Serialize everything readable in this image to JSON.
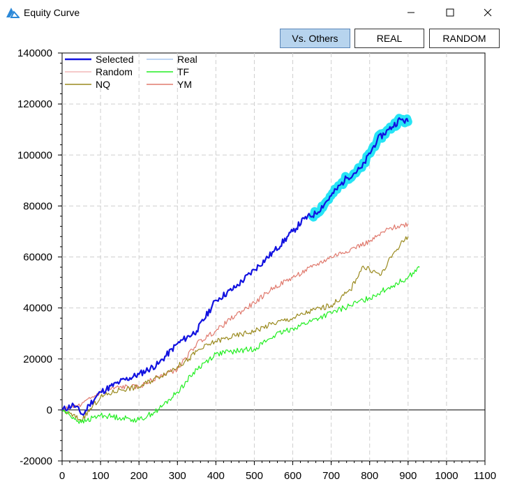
{
  "window": {
    "title": "Equity Curve"
  },
  "toolbar": {
    "vs_others": "Vs. Others",
    "real": "REAL",
    "random": "RANDOM"
  },
  "colors": {
    "selected": "#1212e0",
    "selected_glow": "#26e4f5",
    "real": "#a8c8f0",
    "random": "#f2b8b8",
    "tf": "#22ee22",
    "nq": "#9a8a1e",
    "ym": "#e07a6e",
    "active_button": "#b7d4ee"
  },
  "chart_data": {
    "type": "line",
    "xlim": [
      0,
      1100
    ],
    "ylim": [
      -20000,
      140000
    ],
    "x_ticks": [
      "0",
      "100",
      "200",
      "300",
      "400",
      "500",
      "600",
      "700",
      "800",
      "900",
      "1000",
      "1100"
    ],
    "y_ticks": [
      "-20000",
      "0",
      "20000",
      "40000",
      "60000",
      "80000",
      "100000",
      "120000",
      "140000"
    ],
    "grid": true,
    "legend_position": "top-left",
    "legend": [
      "Selected",
      "Real",
      "Random",
      "TF",
      "NQ",
      "YM"
    ],
    "series": [
      {
        "name": "Selected",
        "points": [
          [
            0,
            0
          ],
          [
            30,
            2000
          ],
          [
            55,
            -2000
          ],
          [
            70,
            2000
          ],
          [
            100,
            7000
          ],
          [
            150,
            11000
          ],
          [
            200,
            14000
          ],
          [
            250,
            18000
          ],
          [
            300,
            26000
          ],
          [
            350,
            31000
          ],
          [
            400,
            43000
          ],
          [
            450,
            48000
          ],
          [
            500,
            55000
          ],
          [
            550,
            62000
          ],
          [
            600,
            70000
          ],
          [
            630,
            75000
          ],
          [
            660,
            77000
          ],
          [
            700,
            84000
          ],
          [
            740,
            91000
          ],
          [
            780,
            95000
          ],
          [
            820,
            106000
          ],
          [
            850,
            110000
          ],
          [
            880,
            114000
          ],
          [
            900,
            113000
          ]
        ]
      },
      {
        "name": "Real",
        "points": []
      },
      {
        "name": "Random",
        "points": []
      },
      {
        "name": "NQ",
        "points": [
          [
            0,
            0
          ],
          [
            50,
            -4000
          ],
          [
            100,
            5000
          ],
          [
            150,
            8000
          ],
          [
            200,
            9000
          ],
          [
            250,
            13000
          ],
          [
            300,
            17000
          ],
          [
            330,
            20000
          ],
          [
            350,
            23000
          ],
          [
            400,
            27000
          ],
          [
            450,
            29000
          ],
          [
            500,
            31000
          ],
          [
            550,
            34000
          ],
          [
            600,
            36000
          ],
          [
            650,
            39000
          ],
          [
            700,
            41000
          ],
          [
            750,
            47000
          ],
          [
            780,
            56000
          ],
          [
            800,
            55000
          ],
          [
            830,
            53000
          ],
          [
            860,
            61000
          ],
          [
            880,
            65000
          ],
          [
            900,
            68000
          ]
        ]
      },
      {
        "name": "TF",
        "points": [
          [
            0,
            0
          ],
          [
            50,
            -5000
          ],
          [
            100,
            -2000
          ],
          [
            150,
            -3000
          ],
          [
            200,
            -4000
          ],
          [
            250,
            0
          ],
          [
            300,
            7000
          ],
          [
            350,
            16000
          ],
          [
            400,
            22000
          ],
          [
            450,
            23000
          ],
          [
            500,
            24000
          ],
          [
            550,
            29000
          ],
          [
            600,
            32000
          ],
          [
            650,
            35000
          ],
          [
            700,
            38000
          ],
          [
            750,
            41000
          ],
          [
            800,
            44000
          ],
          [
            850,
            48000
          ],
          [
            900,
            52000
          ],
          [
            930,
            56000
          ]
        ]
      },
      {
        "name": "YM",
        "points": [
          [
            0,
            0
          ],
          [
            50,
            2000
          ],
          [
            100,
            7000
          ],
          [
            150,
            9000
          ],
          [
            200,
            9000
          ],
          [
            250,
            13000
          ],
          [
            300,
            16000
          ],
          [
            350,
            26000
          ],
          [
            400,
            31000
          ],
          [
            450,
            37000
          ],
          [
            500,
            42000
          ],
          [
            550,
            48000
          ],
          [
            600,
            52000
          ],
          [
            650,
            56000
          ],
          [
            700,
            60000
          ],
          [
            750,
            63000
          ],
          [
            800,
            66000
          ],
          [
            850,
            71000
          ],
          [
            900,
            73000
          ]
        ]
      }
    ]
  }
}
